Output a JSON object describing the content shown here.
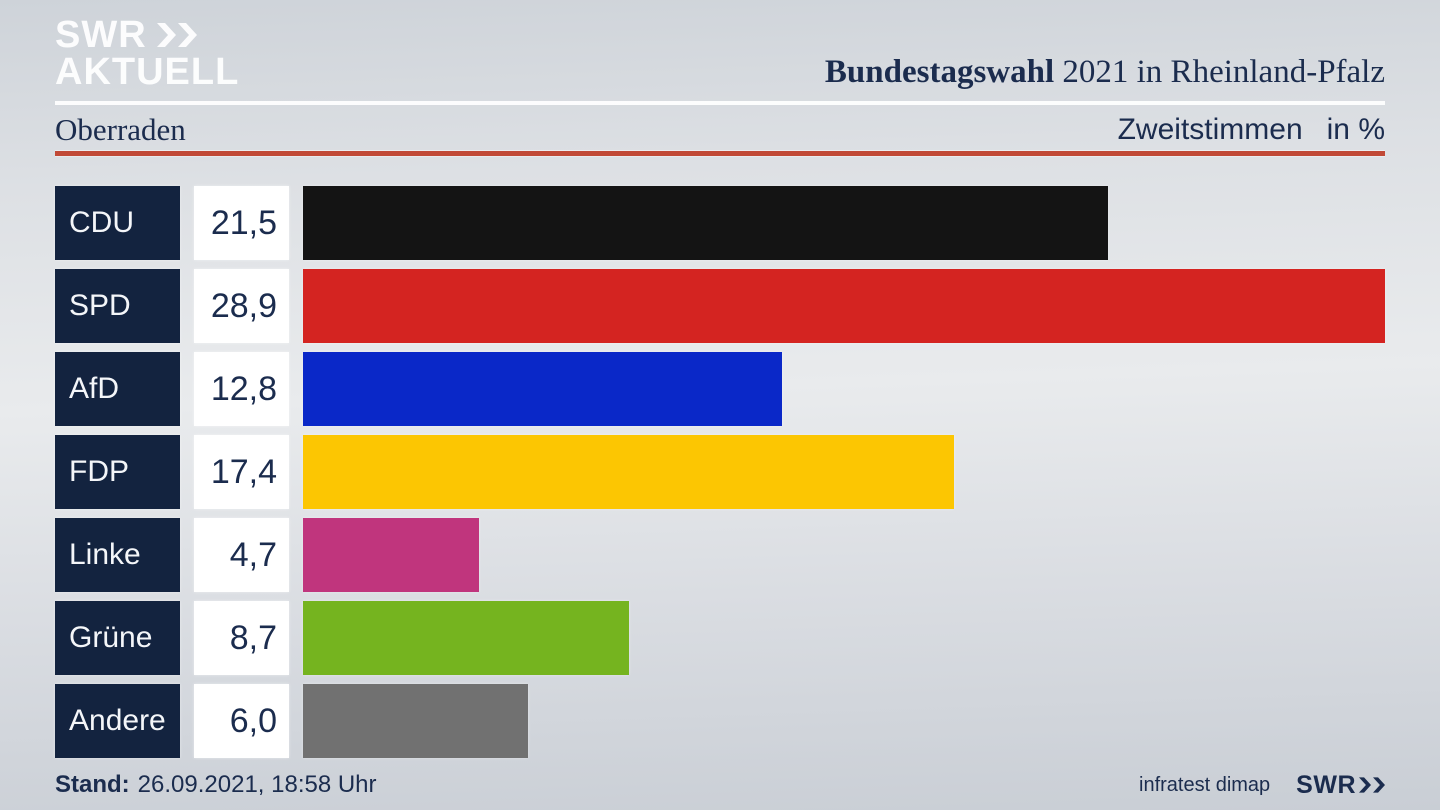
{
  "header": {
    "brand_line1": "SWR",
    "brand_line2": "AKTUELL",
    "title_bold": "Bundestagswahl",
    "title_rest": " 2021 in Rheinland-Pfalz"
  },
  "subheader": {
    "region": "Oberraden",
    "measure": "Zweitstimmen",
    "unit": "in %"
  },
  "chart_data": {
    "type": "bar",
    "orientation": "horizontal",
    "title": "Bundestagswahl 2021 in Rheinland-Pfalz — Oberraden — Zweitstimmen in %",
    "categories": [
      "CDU",
      "SPD",
      "AfD",
      "FDP",
      "Linke",
      "Grüne",
      "Andere"
    ],
    "values": [
      21.5,
      28.9,
      12.8,
      17.4,
      4.7,
      8.7,
      6.0
    ],
    "value_labels": [
      "21,5",
      "28,9",
      "12,8",
      "17,4",
      "4,7",
      "8,7",
      "6,0"
    ],
    "bar_colors": [
      "#141414",
      "#d42421",
      "#0a28c8",
      "#fcc602",
      "#c0357d",
      "#75b41f",
      "#717171"
    ],
    "xlim": [
      0,
      28.9
    ],
    "grid": false,
    "legend": false
  },
  "footer": {
    "stand_label": "Stand:",
    "stand_value": "26.09.2021, 18:58 Uhr",
    "source": "infratest dimap",
    "brand": "SWR"
  },
  "theme": {
    "navy_box": "#13233f",
    "navy_text": "#1b2c4e",
    "rule_red": "#c14936",
    "logo_white": "#ffffff"
  },
  "icons": {
    "brand_chevrons": "double-chevron-right-icon"
  }
}
